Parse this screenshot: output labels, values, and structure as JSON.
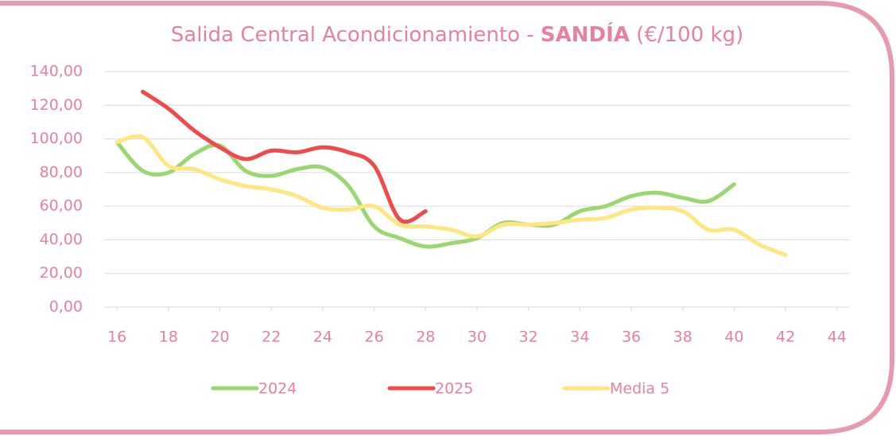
{
  "chart_data": {
    "type": "line",
    "title": [
      "Salida Central Acondicionamiento - ",
      "SANDÍA",
      " (€/100 kg)"
    ],
    "series": [
      {
        "name": "2024",
        "color": "#9bd770",
        "x": [
          16,
          17,
          18,
          19,
          20,
          21,
          22,
          23,
          24,
          25,
          26,
          27,
          28,
          29,
          30,
          31,
          32,
          33,
          34,
          35,
          36,
          37,
          38,
          39,
          40
        ],
        "values": [
          98,
          81,
          80,
          91,
          96,
          81,
          78,
          82,
          83,
          72,
          48,
          41,
          36,
          38,
          41,
          50,
          49,
          49,
          57,
          60,
          66,
          68,
          65,
          63,
          73
        ]
      },
      {
        "name": "2025",
        "color": "#f04a4a",
        "x": [
          17,
          18,
          19,
          20,
          21,
          22,
          23,
          24,
          25,
          26,
          27,
          28
        ],
        "values": [
          128,
          118,
          105,
          95,
          88,
          93,
          92,
          95,
          92,
          84,
          52,
          57
        ]
      },
      {
        "name": "Media 5",
        "color": "#ffe680",
        "x": [
          16,
          17,
          18,
          19,
          20,
          21,
          22,
          23,
          24,
          25,
          26,
          27,
          28,
          29,
          30,
          31,
          32,
          33,
          34,
          35,
          36,
          37,
          38,
          39,
          40,
          41,
          42
        ],
        "values": [
          98,
          101,
          84,
          82,
          76,
          72,
          70,
          66,
          59,
          58,
          60,
          49,
          48,
          46,
          42,
          49,
          49,
          50,
          52,
          53,
          58,
          59,
          57,
          46,
          46,
          37,
          31
        ]
      }
    ],
    "xlim": [
      15.5,
      44.5
    ],
    "xticks": [
      16,
      18,
      20,
      22,
      24,
      26,
      28,
      30,
      32,
      34,
      36,
      38,
      40,
      42,
      44
    ],
    "ylim": [
      0,
      140
    ],
    "yticks": [
      {
        "value": 0,
        "label": "0,00"
      },
      {
        "value": 20,
        "label": "20,00"
      },
      {
        "value": 40,
        "label": "40,00"
      },
      {
        "value": 60,
        "label": "60,00"
      },
      {
        "value": 80,
        "label": "80,00"
      },
      {
        "value": 100,
        "label": "100,00"
      },
      {
        "value": 120,
        "label": "120,00"
      },
      {
        "value": 140,
        "label": "140,00"
      }
    ],
    "grid": true,
    "legend": "bottom"
  }
}
